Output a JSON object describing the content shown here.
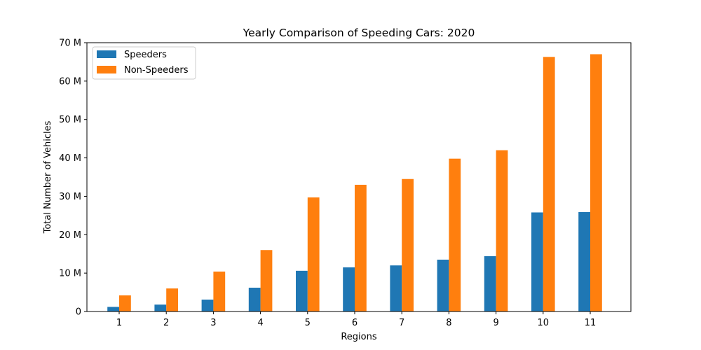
{
  "chart_data": {
    "type": "bar",
    "title": "Yearly Comparison of Speeding Cars: 2020",
    "xlabel": "Regions",
    "ylabel": "Total Number of Vehicles",
    "categories": [
      "1",
      "2",
      "3",
      "4",
      "5",
      "6",
      "7",
      "8",
      "9",
      "10",
      "11"
    ],
    "series": [
      {
        "name": "Speeders",
        "color": "#1f77b4",
        "values": [
          1.2,
          1.8,
          3.1,
          6.2,
          10.6,
          11.5,
          12.0,
          13.5,
          14.4,
          25.8,
          25.9
        ]
      },
      {
        "name": "Non-Speeders",
        "color": "#ff7f0e",
        "values": [
          4.2,
          6.0,
          10.4,
          16.0,
          29.7,
          33.0,
          34.5,
          39.8,
          42.0,
          66.3,
          67.0
        ]
      }
    ],
    "ylim": [
      0,
      70
    ],
    "yticks": [
      0,
      10,
      20,
      30,
      40,
      50,
      60,
      70
    ],
    "ytick_labels": [
      "0",
      "10 M",
      "20 M",
      "30 M",
      "40 M",
      "50 M",
      "60 M",
      "70 M"
    ],
    "grid": false,
    "legend_position": "top-left"
  }
}
